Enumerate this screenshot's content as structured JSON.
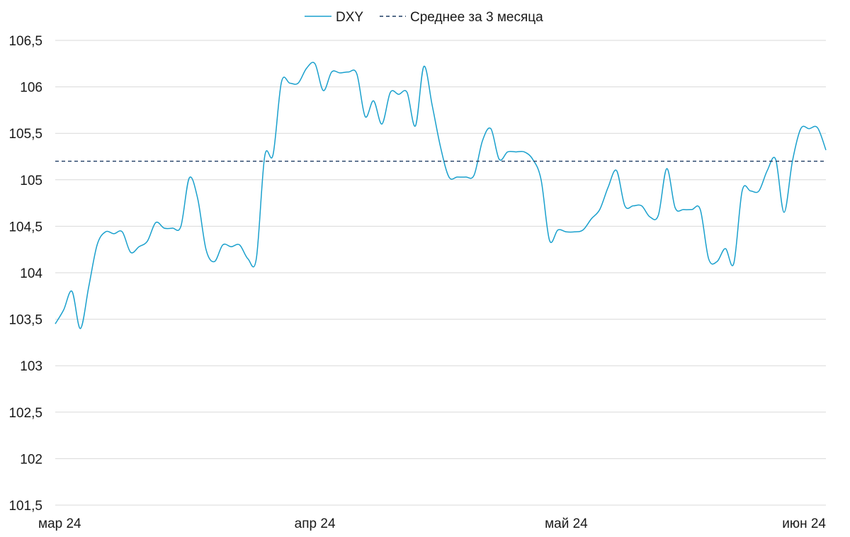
{
  "chart_data": {
    "type": "line",
    "legend": {
      "position": "top-center"
    },
    "grid": {
      "y": true,
      "x": false
    },
    "x_axis": {
      "ticks": [
        {
          "date": "2024-03-01",
          "label": "мар 24"
        },
        {
          "date": "2024-04-01",
          "label": "апр 24"
        },
        {
          "date": "2024-05-01",
          "label": "май 24"
        },
        {
          "date": "2024-06-01",
          "label": "июн 24"
        }
      ],
      "range": [
        "2024-03-01",
        "2024-06-01"
      ]
    },
    "y_axis": {
      "ylim": [
        101.5,
        106.5
      ],
      "ticks": [
        101.5,
        102,
        102.5,
        103,
        103.5,
        104,
        104.5,
        105,
        105.5,
        106,
        106.5
      ],
      "tick_labels": [
        "101,5",
        "102",
        "102,5",
        "103",
        "103,5",
        "104",
        "104,5",
        "105",
        "105,5",
        "106",
        "106,5"
      ]
    },
    "series": [
      {
        "name": "DXY",
        "color": "#1aa0cd",
        "style": "solid",
        "points": [
          [
            "2024-03-01",
            103.45
          ],
          [
            "2024-03-02",
            103.6
          ],
          [
            "2024-03-03",
            103.8
          ],
          [
            "2024-03-04",
            103.4
          ],
          [
            "2024-03-05",
            103.85
          ],
          [
            "2024-03-06",
            104.3
          ],
          [
            "2024-03-07",
            104.44
          ],
          [
            "2024-03-08",
            104.42
          ],
          [
            "2024-03-09",
            104.44
          ],
          [
            "2024-03-10",
            104.22
          ],
          [
            "2024-03-11",
            104.28
          ],
          [
            "2024-03-12",
            104.34
          ],
          [
            "2024-03-13",
            104.54
          ],
          [
            "2024-03-14",
            104.48
          ],
          [
            "2024-03-15",
            104.48
          ],
          [
            "2024-03-16",
            104.5
          ],
          [
            "2024-03-17",
            105.02
          ],
          [
            "2024-03-18",
            104.8
          ],
          [
            "2024-03-19",
            104.25
          ],
          [
            "2024-03-20",
            104.12
          ],
          [
            "2024-03-21",
            104.3
          ],
          [
            "2024-03-22",
            104.28
          ],
          [
            "2024-03-23",
            104.3
          ],
          [
            "2024-03-24",
            104.15
          ],
          [
            "2024-03-25",
            104.15
          ],
          [
            "2024-03-26",
            105.25
          ],
          [
            "2024-03-27",
            105.27
          ],
          [
            "2024-03-28",
            106.05
          ],
          [
            "2024-03-29",
            106.04
          ],
          [
            "2024-03-30",
            106.04
          ],
          [
            "2024-03-31",
            106.2
          ],
          [
            "2024-04-01",
            106.25
          ],
          [
            "2024-04-02",
            105.96
          ],
          [
            "2024-04-03",
            106.16
          ],
          [
            "2024-04-04",
            106.15
          ],
          [
            "2024-04-05",
            106.16
          ],
          [
            "2024-04-06",
            106.14
          ],
          [
            "2024-04-07",
            105.68
          ],
          [
            "2024-04-08",
            105.85
          ],
          [
            "2024-04-09",
            105.6
          ],
          [
            "2024-04-10",
            105.94
          ],
          [
            "2024-04-11",
            105.92
          ],
          [
            "2024-04-12",
            105.94
          ],
          [
            "2024-04-13",
            105.58
          ],
          [
            "2024-04-14",
            106.22
          ],
          [
            "2024-04-15",
            105.8
          ],
          [
            "2024-04-16",
            105.35
          ],
          [
            "2024-04-17",
            105.03
          ],
          [
            "2024-04-18",
            105.03
          ],
          [
            "2024-04-19",
            105.03
          ],
          [
            "2024-04-20",
            105.05
          ],
          [
            "2024-04-21",
            105.42
          ],
          [
            "2024-04-22",
            105.55
          ],
          [
            "2024-04-23",
            105.22
          ],
          [
            "2024-04-24",
            105.3
          ],
          [
            "2024-04-25",
            105.3
          ],
          [
            "2024-04-26",
            105.3
          ],
          [
            "2024-04-27",
            105.22
          ],
          [
            "2024-04-28",
            105.0
          ],
          [
            "2024-04-29",
            104.35
          ],
          [
            "2024-04-30",
            104.46
          ],
          [
            "2024-05-01",
            104.44
          ],
          [
            "2024-05-02",
            104.44
          ],
          [
            "2024-05-03",
            104.46
          ],
          [
            "2024-05-04",
            104.58
          ],
          [
            "2024-05-05",
            104.68
          ],
          [
            "2024-05-06",
            104.92
          ],
          [
            "2024-05-07",
            105.1
          ],
          [
            "2024-05-08",
            104.72
          ],
          [
            "2024-05-09",
            104.72
          ],
          [
            "2024-05-10",
            104.72
          ],
          [
            "2024-05-11",
            104.6
          ],
          [
            "2024-05-12",
            104.62
          ],
          [
            "2024-05-13",
            105.12
          ],
          [
            "2024-05-14",
            104.7
          ],
          [
            "2024-05-15",
            104.68
          ],
          [
            "2024-05-16",
            104.68
          ],
          [
            "2024-05-17",
            104.68
          ],
          [
            "2024-05-18",
            104.15
          ],
          [
            "2024-05-19",
            104.12
          ],
          [
            "2024-05-20",
            104.26
          ],
          [
            "2024-05-21",
            104.1
          ],
          [
            "2024-05-22",
            104.88
          ],
          [
            "2024-05-23",
            104.88
          ],
          [
            "2024-05-24",
            104.88
          ],
          [
            "2024-05-25",
            105.1
          ],
          [
            "2024-05-26",
            105.22
          ],
          [
            "2024-05-27",
            104.65
          ],
          [
            "2024-05-28",
            105.2
          ],
          [
            "2024-05-29",
            105.55
          ],
          [
            "2024-05-30",
            105.55
          ],
          [
            "2024-05-31",
            105.56
          ],
          [
            "2024-06-01",
            105.32
          ]
        ]
      },
      {
        "name": "Среднее за 3 месяца",
        "color": "#1f3b63",
        "style": "dashed",
        "points": [
          [
            "2024-03-01",
            105.2
          ],
          [
            "2024-06-01",
            105.2
          ]
        ]
      }
    ]
  }
}
